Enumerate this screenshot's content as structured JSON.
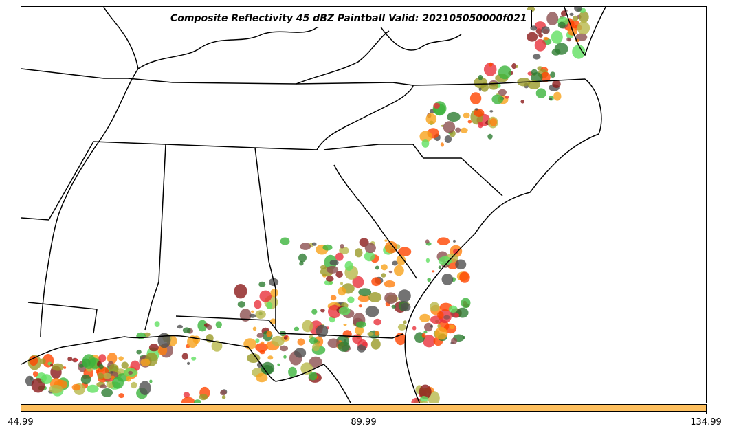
{
  "title": "Composite Reflectivity 45 dBZ Paintball Valid: 202105050000f021",
  "colorbar": {
    "color": "#fdbf5e",
    "ticks": [
      "44.99",
      "89.99",
      "134.99"
    ]
  },
  "colors": {
    "land_background": "#ffffff",
    "boundary": "#000000",
    "member_palette": [
      "#e8323c",
      "#ff7f0e",
      "#f7a21c",
      "#9a9a28",
      "#b8b84a",
      "#3cb43c",
      "#60e060",
      "#2e7d32",
      "#8b1a1a",
      "#8c5050",
      "#505050",
      "#ff4500"
    ]
  }
}
